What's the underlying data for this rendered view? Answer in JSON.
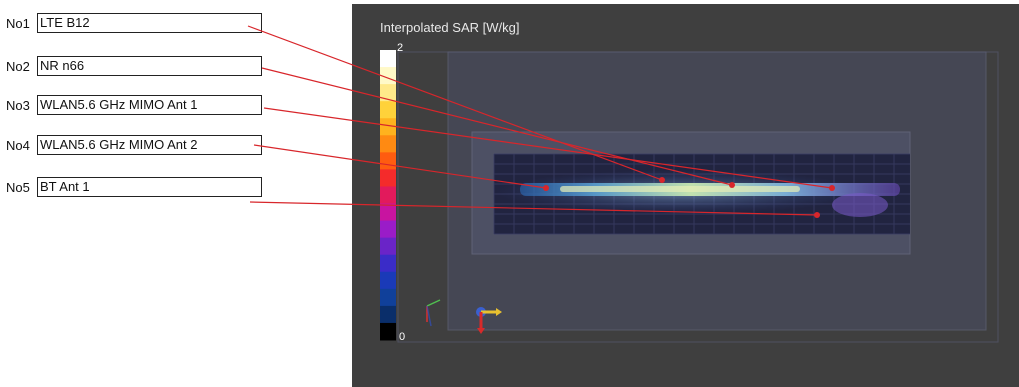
{
  "antennas": [
    {
      "no": "No1",
      "label": "LTE B12"
    },
    {
      "no": "No2",
      "label": "NR n66"
    },
    {
      "no": "No3",
      "label": "WLAN5.6 GHz MIMO Ant 1"
    },
    {
      "no": "No4",
      "label": "WLAN5.6 GHz MIMO Ant 2"
    },
    {
      "no": "No5",
      "label": "BT Ant 1"
    }
  ],
  "viewer": {
    "title": "Interpolated SAR [W/kg]",
    "scale_max": "2",
    "scale_min": "0",
    "colors": {
      "background": "#3f3f3f",
      "leader_line": "#d8262b",
      "scale": [
        "#ffffff",
        "#fff9c8",
        "#ffe98a",
        "#ffd23a",
        "#ffb21e",
        "#ff8a12",
        "#ff5c10",
        "#f42b2b",
        "#e21a5c",
        "#c814a0",
        "#9a1cc8",
        "#6a24c8",
        "#3a2cc8",
        "#1a3ab8",
        "#10409a",
        "#0a2e6a",
        "#000000"
      ]
    }
  }
}
